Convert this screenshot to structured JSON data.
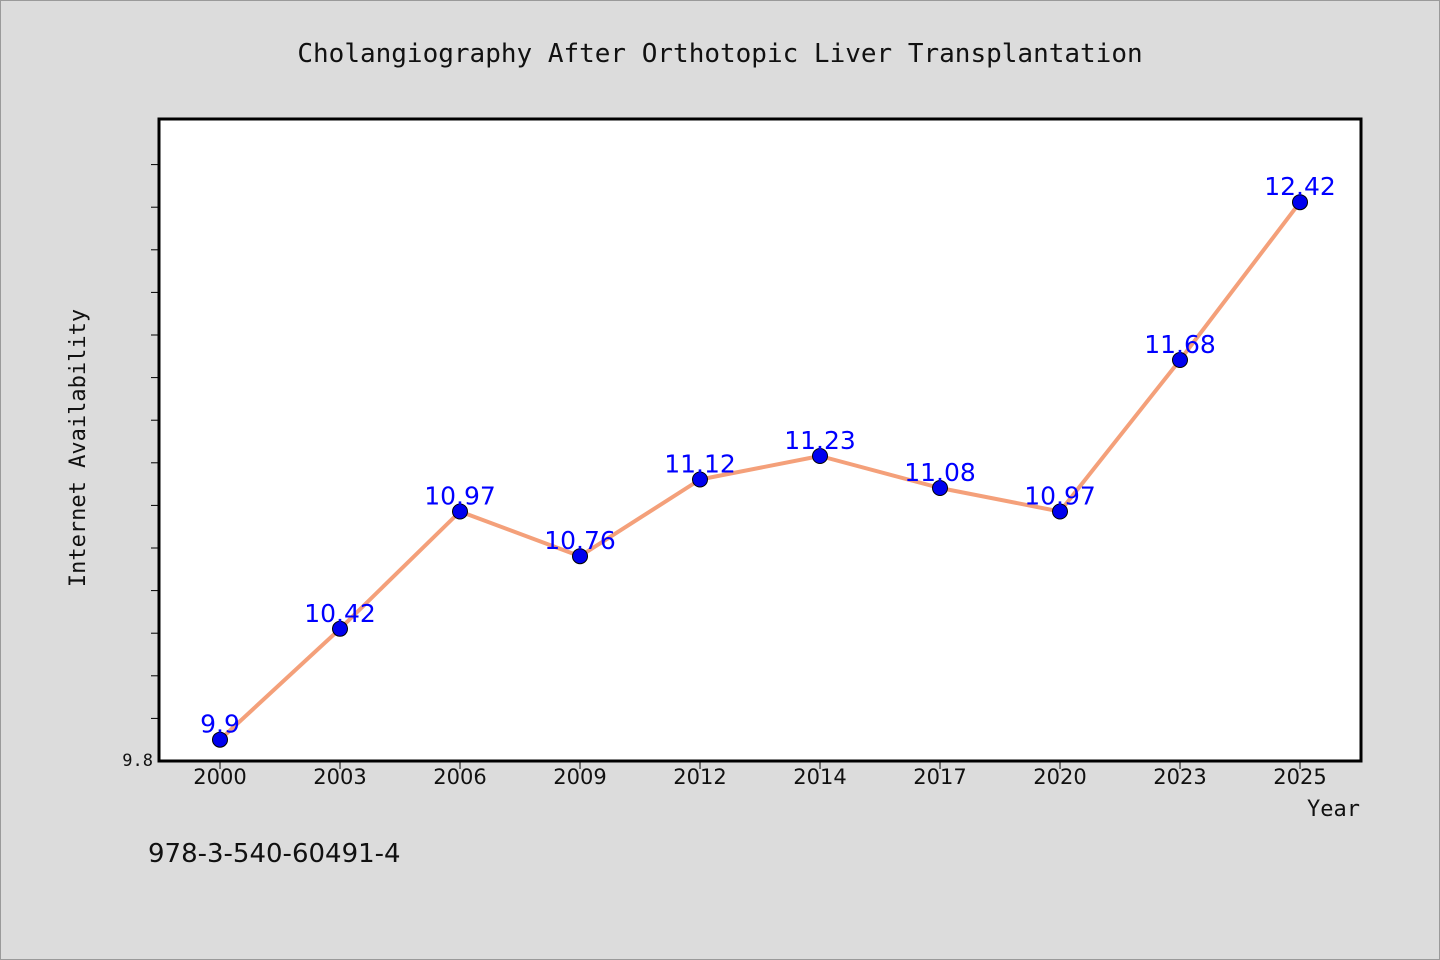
{
  "chart_data": {
    "type": "line",
    "title": "Cholangiography After Orthotopic Liver Transplantation",
    "xlabel": "Year",
    "ylabel": "Internet Availability",
    "categories": [
      "2000",
      "2003",
      "2006",
      "2009",
      "2012",
      "2014",
      "2017",
      "2020",
      "2023",
      "2025"
    ],
    "series": [
      {
        "values": [
          9.9,
          10.42,
          10.97,
          10.76,
          11.12,
          11.23,
          11.08,
          10.97,
          11.68,
          12.42
        ],
        "labels": [
          "9.9",
          "10.42",
          "10.97",
          "10.76",
          "11.12",
          "11.23",
          "11.08",
          "10.97",
          "11.68",
          "12.42"
        ]
      }
    ],
    "ylim": [
      9.8,
      12.81
    ],
    "ytick_labels": [
      "9.8"
    ],
    "grid": false,
    "colors": {
      "line": "#f4a07a",
      "marker": "#0000ee",
      "marker_edge": "#000000",
      "data_label": "#0000ff",
      "plot_bg": "#ffffff",
      "page_bg": "#dcdcdc"
    }
  },
  "footer": {
    "isbn": "978-3-540-60491-4"
  }
}
